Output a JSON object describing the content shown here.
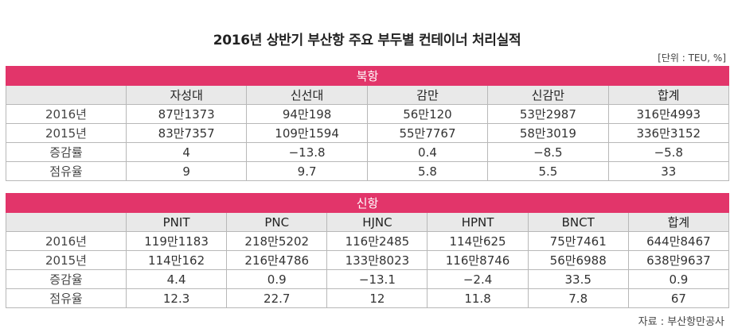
{
  "title": "2016년 상반기 부산항 주요 부두별 컨테이너 처리실적",
  "unit": "[단위 : TEU, %]",
  "source": "자료 : 부산항만공사",
  "tables": [
    {
      "section": "북항",
      "columns": [
        "",
        "자성대",
        "신선대",
        "감만",
        "신감만",
        "합계"
      ],
      "rows": [
        [
          "2016년",
          "87만1373",
          "94만198",
          "56만120",
          "53만2987",
          "316만4993"
        ],
        [
          "2015년",
          "83만7357",
          "109만1594",
          "55만7767",
          "58만3019",
          "336만3152"
        ],
        [
          "증감률",
          "4",
          "−13.8",
          "0.4",
          "−8.5",
          "−5.8"
        ],
        [
          "점유율",
          "9",
          "9.7",
          "5.8",
          "5.5",
          "33"
        ]
      ]
    },
    {
      "section": "신항",
      "columns": [
        "",
        "PNIT",
        "PNC",
        "HJNC",
        "HPNT",
        "BNCT",
        "합계"
      ],
      "rows": [
        [
          "2016년",
          "119만1183",
          "218만5202",
          "116만2485",
          "114만625",
          "75만7461",
          "644만8467"
        ],
        [
          "2015년",
          "114만162",
          "216만4786",
          "133만8023",
          "116만8746",
          "56만6988",
          "638만9637"
        ],
        [
          "증감율",
          "4.4",
          "0.9",
          "−13.1",
          "−2.4",
          "33.5",
          "0.9"
        ],
        [
          "점유율",
          "12.3",
          "22.7",
          "12",
          "11.8",
          "7.8",
          "67"
        ]
      ]
    }
  ]
}
